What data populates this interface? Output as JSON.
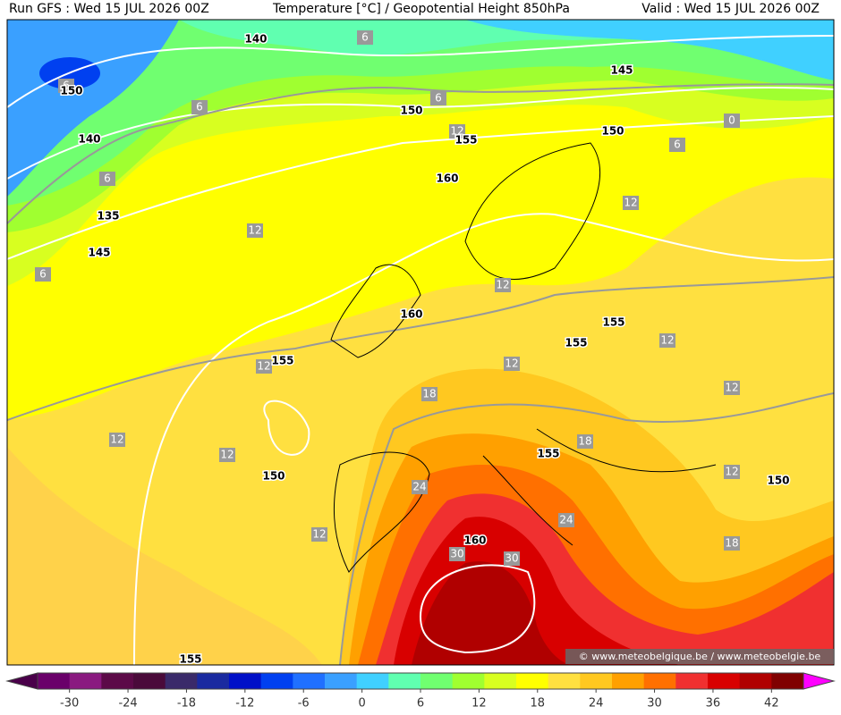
{
  "header": {
    "run": "Run GFS : Wed 15 JUL 2026 00Z",
    "title": "Temperature [°C] / Geopotential Height 850hPa",
    "valid": "Valid : Wed 15 JUL 2026 00Z"
  },
  "map": {
    "height_labels": [
      140,
      150,
      145,
      150,
      155,
      150,
      140,
      160,
      135,
      145,
      160,
      155,
      155,
      155,
      150,
      155,
      150,
      160,
      155
    ],
    "temperature_labels": [
      6,
      6,
      6,
      6,
      12,
      6,
      0,
      6,
      12,
      12,
      6,
      12,
      12,
      12,
      12,
      18,
      12,
      12,
      12,
      18,
      12,
      24,
      24,
      12,
      18,
      30,
      30
    ],
    "credit": "© www.meteobelgique.be / www.meteobelgie.be"
  },
  "colorbar": {
    "ticks": [
      -30,
      -24,
      -18,
      -12,
      -6,
      0,
      6,
      12,
      18,
      24,
      30,
      36,
      42
    ],
    "colors": [
      "#6a006a",
      "#8a1a80",
      "#5c0a48",
      "#4a0a3a",
      "#3a2a6a",
      "#1a2aa0",
      "#0010c8",
      "#0040f0",
      "#2070ff",
      "#3aa0ff",
      "#40d0ff",
      "#60ffb0",
      "#70ff70",
      "#a0ff30",
      "#d8ff20",
      "#ffff00",
      "#ffe040",
      "#ffc820",
      "#ffa000",
      "#ff7000",
      "#f03030",
      "#d80000",
      "#b00000",
      "#800000"
    ],
    "low_color": "#4a004a",
    "high_color": "#ff00ff"
  }
}
